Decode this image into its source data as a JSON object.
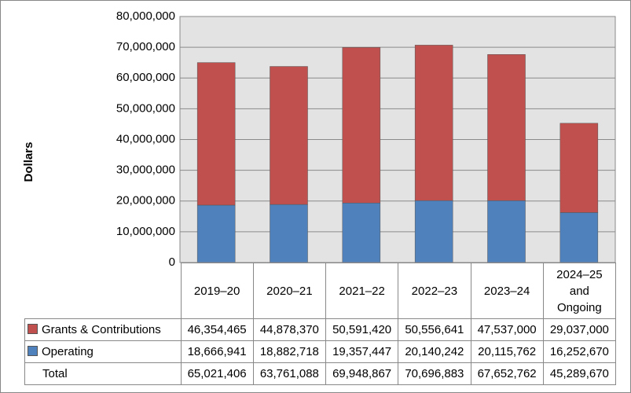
{
  "chart_data": {
    "type": "stacked_bar",
    "y_label": "Dollars",
    "categories": [
      "2019–20",
      "2020–21",
      "2021–22",
      "2022–23",
      "2023–24",
      "2024–25 and Ongoing"
    ],
    "series": [
      {
        "name": "Operating",
        "color": "#4f81bd",
        "values": [
          18666941,
          18882718,
          19357447,
          20140242,
          20115762,
          16252670
        ],
        "value_labels": [
          "18,666,941",
          "18,882,718",
          "19,357,447",
          "20,140,242",
          "20,115,762",
          "16,252,670"
        ]
      },
      {
        "name": "Grants & Contributions",
        "color": "#c0504d",
        "values": [
          46354465,
          44878370,
          50591420,
          50556641,
          47537000,
          29037000
        ],
        "value_labels": [
          "46,354,465",
          "44,878,370",
          "50,591,420",
          "50,556,641",
          "47,537,000",
          "29,037,000"
        ]
      }
    ],
    "total_row": {
      "label": "Total",
      "values": [
        "65,021,406",
        "63,761,088",
        "69,948,867",
        "70,696,883",
        "67,652,762",
        "45,289,670"
      ]
    },
    "ylim": [
      0,
      80000000
    ],
    "yticks": [
      0,
      {
        "value": 10000000,
        "label": "10,000,000"
      },
      {
        "value": 20000000,
        "label": "20,000,000"
      },
      {
        "value": 30000000,
        "label": "30,000,000"
      },
      {
        "value": 40000000,
        "label": "40,000,000"
      },
      {
        "value": 50000000,
        "label": "50,000,000"
      },
      {
        "value": 60000000,
        "label": "60,000,000"
      },
      {
        "value": 70000000,
        "label": "70,000,000"
      },
      {
        "value": 80000000,
        "label": "80,000,000"
      }
    ],
    "grid": true,
    "plot_background": "#e3e3e3"
  }
}
